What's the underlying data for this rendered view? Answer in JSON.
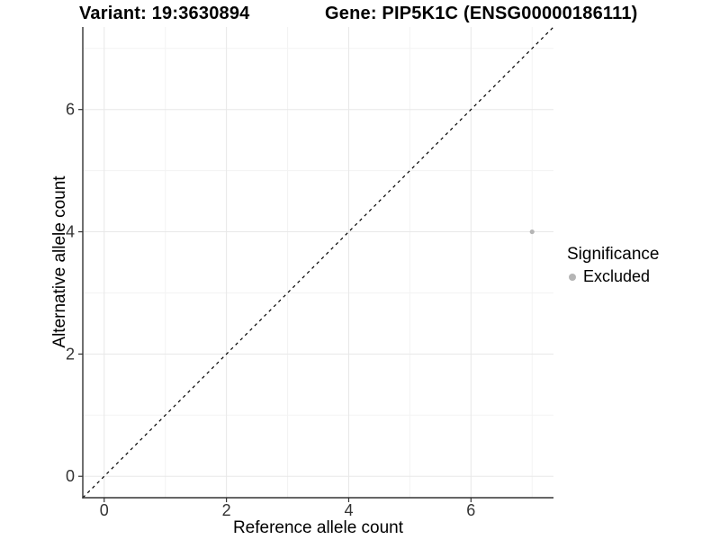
{
  "chart_data": {
    "type": "scatter",
    "titles": {
      "variant": "Variant: 19:3630894",
      "gene": "Gene: PIP5K1C (ENSG00000186111)"
    },
    "xlabel": "Reference allele count",
    "ylabel": "Alternative allele count",
    "xlim": [
      -0.35,
      7.35
    ],
    "ylim": [
      -0.35,
      7.35
    ],
    "x_ticks": [
      0,
      2,
      4,
      6
    ],
    "y_ticks": [
      0,
      2,
      4,
      6
    ],
    "x_minor_ticks": [
      1,
      3,
      5,
      7
    ],
    "y_minor_ticks": [
      1,
      3,
      5,
      7
    ],
    "grid": true,
    "points": [
      {
        "x": 7,
        "y": 4,
        "series": "Excluded"
      }
    ],
    "reference_line": {
      "slope": 1,
      "intercept": 0,
      "style": "dashed",
      "color": "#000000"
    },
    "legend": {
      "title": "Significance",
      "position": "right",
      "items": [
        {
          "label": "Excluded",
          "color": "#b5b5b5"
        }
      ]
    },
    "colors": {
      "point": "#b5b5b5",
      "grid_major": "#e8e8e8",
      "grid_minor": "#f3f3f3",
      "axis": "#333333",
      "tick_label": "#333333"
    }
  }
}
